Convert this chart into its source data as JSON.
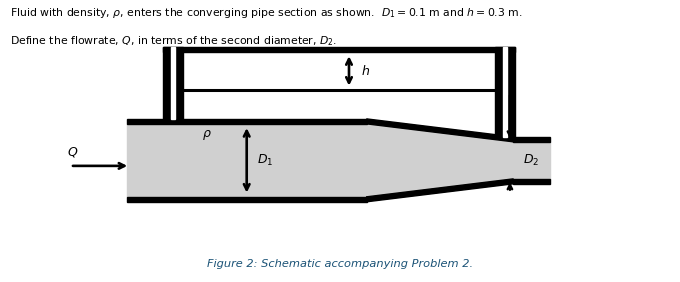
{
  "title_text1": "Fluid with density, $\\rho$, enters the converging pipe section as shown.  $D_1 = 0.1$ m and $h = 0.3$ m.",
  "title_text2": "Define the flowrate, $Q$, in terms of the second diameter, $D_2$.",
  "caption": "Figure 2: Schematic accompanying Problem 2.",
  "bg_color": "#ffffff",
  "pipe_fill": "#d0d0d0",
  "pipe_edge": "#000000",
  "caption_color": "#1a5276",
  "lw": 2.2,
  "wall": 0.18
}
